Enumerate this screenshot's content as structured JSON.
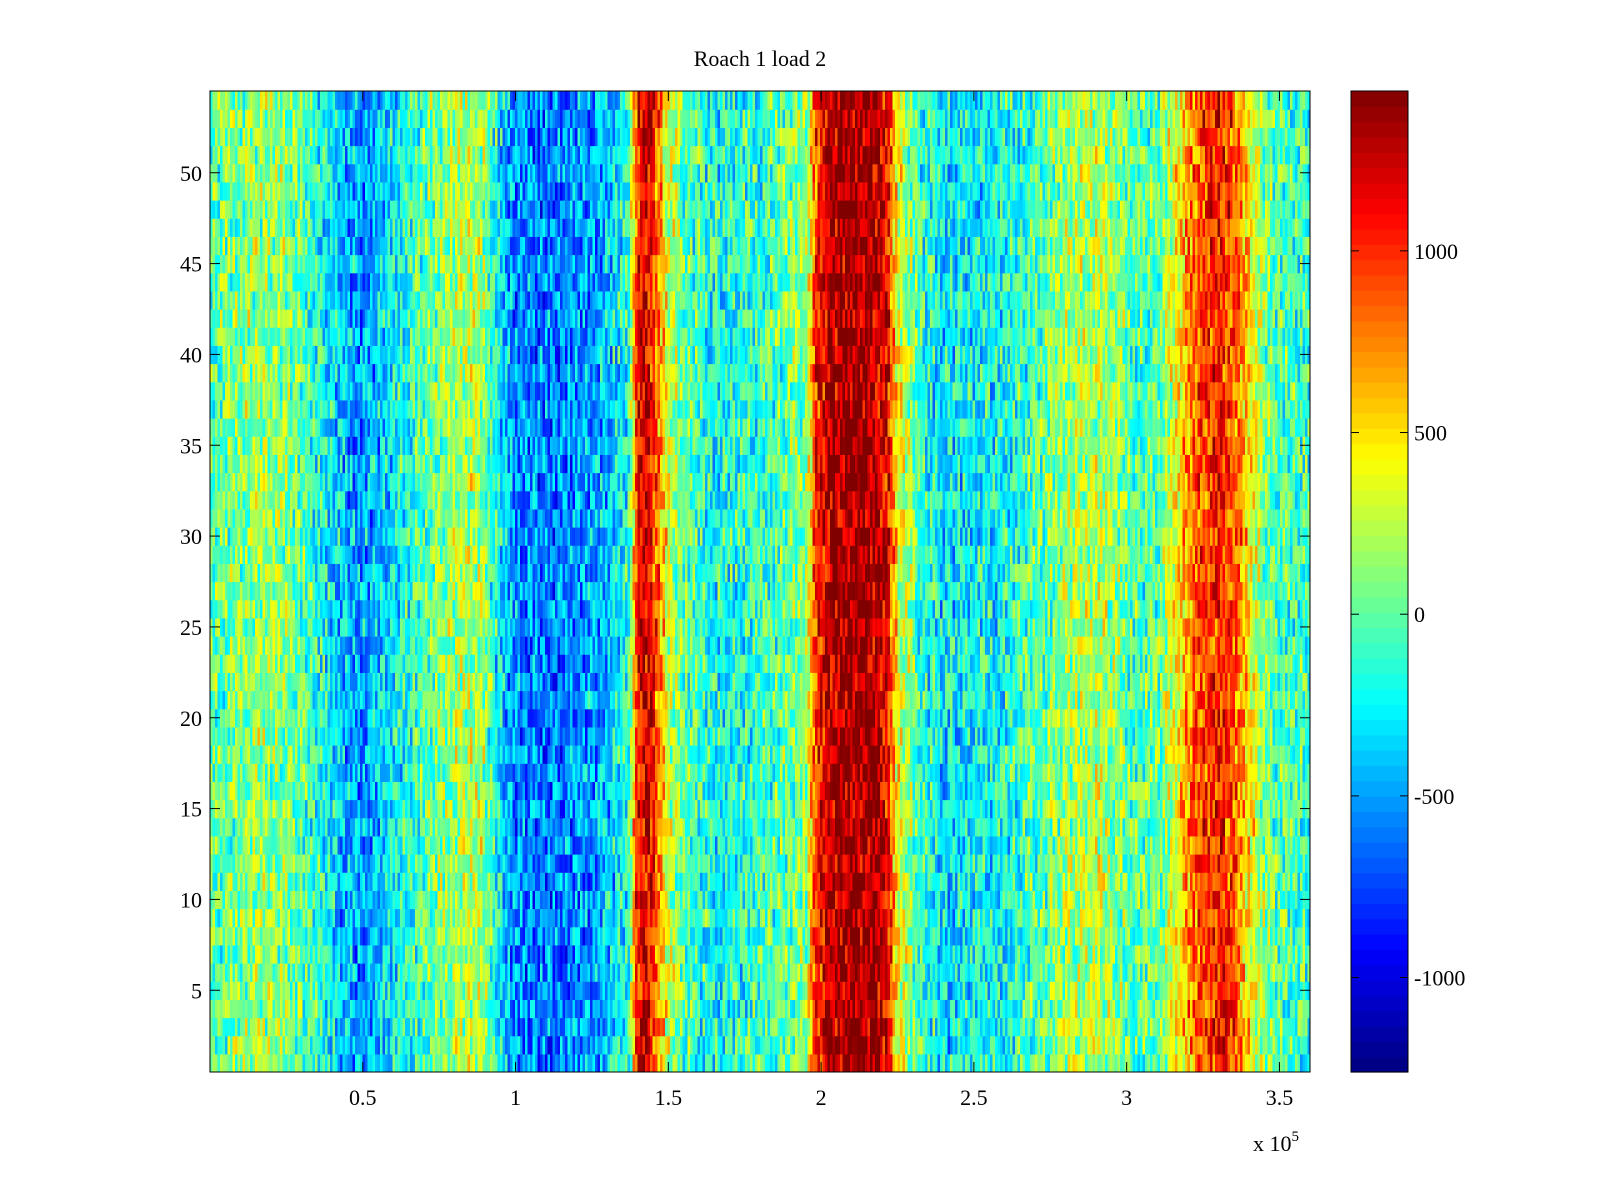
{
  "chart_data": {
    "type": "heatmap",
    "title": "Roach 1 load 2",
    "xlabel": "",
    "ylabel": "",
    "x_exponent_base": "x 10",
    "x_exponent_power": "5",
    "xlim": [
      0,
      3.6
    ],
    "ylim": [
      0.5,
      54.5
    ],
    "x_ticks": [
      0.5,
      1,
      1.5,
      2,
      2.5,
      3,
      3.5
    ],
    "x_tick_labels": [
      "0.5",
      "1",
      "1.5",
      "2",
      "2.5",
      "3",
      "3.5"
    ],
    "y_ticks": [
      5,
      10,
      15,
      20,
      25,
      30,
      35,
      40,
      45,
      50
    ],
    "y_tick_labels": [
      "5",
      "10",
      "15",
      "20",
      "25",
      "30",
      "35",
      "40",
      "45",
      "50"
    ],
    "rows": 54,
    "colormap": "jet",
    "colorbar": {
      "clim": [
        -1260,
        1440
      ],
      "ticks": [
        -1000,
        -500,
        0,
        500,
        1000
      ],
      "tick_labels": [
        "-1000",
        "-500",
        "0",
        "500",
        "1000"
      ]
    },
    "value_profile": {
      "description_units": "x in units of 1e5, value in colorbar units",
      "points": [
        [
          0.0,
          -50
        ],
        [
          0.05,
          50
        ],
        [
          0.15,
          150
        ],
        [
          0.25,
          120
        ],
        [
          0.35,
          -150
        ],
        [
          0.45,
          -450
        ],
        [
          0.5,
          -500
        ],
        [
          0.55,
          -400
        ],
        [
          0.65,
          -150
        ],
        [
          0.75,
          100
        ],
        [
          0.82,
          200
        ],
        [
          0.88,
          250
        ],
        [
          0.95,
          -300
        ],
        [
          1.0,
          -550
        ],
        [
          1.1,
          -600
        ],
        [
          1.2,
          -550
        ],
        [
          1.3,
          -400
        ],
        [
          1.37,
          -150
        ],
        [
          1.4,
          1100
        ],
        [
          1.43,
          1200
        ],
        [
          1.46,
          900
        ],
        [
          1.5,
          300
        ],
        [
          1.55,
          0
        ],
        [
          1.65,
          -200
        ],
        [
          1.75,
          -150
        ],
        [
          1.85,
          -50
        ],
        [
          1.95,
          100
        ],
        [
          1.98,
          900
        ],
        [
          2.02,
          1300
        ],
        [
          2.1,
          1400
        ],
        [
          2.18,
          1350
        ],
        [
          2.22,
          1100
        ],
        [
          2.25,
          400
        ],
        [
          2.32,
          -100
        ],
        [
          2.4,
          -300
        ],
        [
          2.5,
          -250
        ],
        [
          2.6,
          -200
        ],
        [
          2.7,
          -50
        ],
        [
          2.8,
          150
        ],
        [
          2.9,
          250
        ],
        [
          2.97,
          150
        ],
        [
          3.02,
          -50
        ],
        [
          3.1,
          0
        ],
        [
          3.15,
          300
        ],
        [
          3.2,
          700
        ],
        [
          3.25,
          950
        ],
        [
          3.3,
          1050
        ],
        [
          3.35,
          900
        ],
        [
          3.4,
          500
        ],
        [
          3.45,
          100
        ],
        [
          3.5,
          -50
        ],
        [
          3.6,
          -100
        ]
      ]
    }
  }
}
